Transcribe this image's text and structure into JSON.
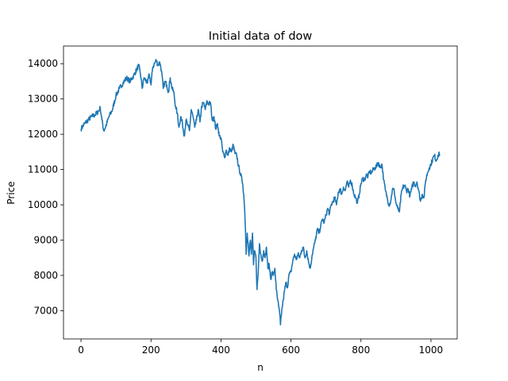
{
  "chart_data": {
    "type": "line",
    "title": "Initial data of dow",
    "xlabel": "n",
    "ylabel": "Price",
    "xlim": [
      -50,
      1075
    ],
    "ylim": [
      6200,
      14500
    ],
    "xticks": [
      0,
      200,
      400,
      600,
      800,
      1000
    ],
    "yticks": [
      7000,
      8000,
      9000,
      10000,
      11000,
      12000,
      13000,
      14000
    ],
    "grid": false,
    "series": [
      {
        "name": "dow",
        "color": "#1f77b4",
        "anchors": [
          [
            0,
            12150
          ],
          [
            10,
            12300
          ],
          [
            20,
            12400
          ],
          [
            30,
            12500
          ],
          [
            40,
            12550
          ],
          [
            50,
            12650
          ],
          [
            55,
            12750
          ],
          [
            60,
            12400
          ],
          [
            65,
            12100
          ],
          [
            70,
            12200
          ],
          [
            80,
            12500
          ],
          [
            90,
            12700
          ],
          [
            100,
            13100
          ],
          [
            110,
            13300
          ],
          [
            120,
            13450
          ],
          [
            130,
            13600
          ],
          [
            140,
            13500
          ],
          [
            150,
            13650
          ],
          [
            160,
            13850
          ],
          [
            165,
            13950
          ],
          [
            170,
            13700
          ],
          [
            175,
            13300
          ],
          [
            180,
            13600
          ],
          [
            190,
            13450
          ],
          [
            195,
            13700
          ],
          [
            200,
            13400
          ],
          [
            205,
            13900
          ],
          [
            210,
            14000
          ],
          [
            215,
            14100
          ],
          [
            220,
            13950
          ],
          [
            225,
            14050
          ],
          [
            230,
            13800
          ],
          [
            235,
            13300
          ],
          [
            240,
            13500
          ],
          [
            245,
            13400
          ],
          [
            250,
            13200
          ],
          [
            255,
            13600
          ],
          [
            260,
            13300
          ],
          [
            265,
            13200
          ],
          [
            270,
            12800
          ],
          [
            275,
            12600
          ],
          [
            280,
            12200
          ],
          [
            285,
            12500
          ],
          [
            290,
            12300
          ],
          [
            295,
            11950
          ],
          [
            300,
            12400
          ],
          [
            305,
            12250
          ],
          [
            310,
            12100
          ],
          [
            315,
            12700
          ],
          [
            320,
            12500
          ],
          [
            325,
            12200
          ],
          [
            330,
            12400
          ],
          [
            335,
            12700
          ],
          [
            340,
            12350
          ],
          [
            345,
            12800
          ],
          [
            350,
            12900
          ],
          [
            355,
            12700
          ],
          [
            360,
            12950
          ],
          [
            365,
            12850
          ],
          [
            370,
            12900
          ],
          [
            375,
            12400
          ],
          [
            380,
            12500
          ],
          [
            385,
            12150
          ],
          [
            390,
            12300
          ],
          [
            395,
            11950
          ],
          [
            400,
            11900
          ],
          [
            405,
            11500
          ],
          [
            410,
            11350
          ],
          [
            415,
            11550
          ],
          [
            420,
            11400
          ],
          [
            425,
            11600
          ],
          [
            430,
            11500
          ],
          [
            435,
            11700
          ],
          [
            440,
            11450
          ],
          [
            445,
            11400
          ],
          [
            450,
            11100
          ],
          [
            455,
            10900
          ],
          [
            460,
            10700
          ],
          [
            462,
            10600
          ],
          [
            465,
            10300
          ],
          [
            468,
            9800
          ],
          [
            470,
            9300
          ],
          [
            472,
            8600
          ],
          [
            475,
            9200
          ],
          [
            478,
            8900
          ],
          [
            480,
            8550
          ],
          [
            484,
            9000
          ],
          [
            487,
            8600
          ],
          [
            490,
            9200
          ],
          [
            493,
            8300
          ],
          [
            496,
            8700
          ],
          [
            500,
            8500
          ],
          [
            503,
            7600
          ],
          [
            506,
            8000
          ],
          [
            510,
            8900
          ],
          [
            514,
            8600
          ],
          [
            518,
            8400
          ],
          [
            522,
            8700
          ],
          [
            526,
            8500
          ],
          [
            530,
            8800
          ],
          [
            534,
            8200
          ],
          [
            538,
            8300
          ],
          [
            542,
            7900
          ],
          [
            546,
            8100
          ],
          [
            550,
            8000
          ],
          [
            554,
            8200
          ],
          [
            558,
            7600
          ],
          [
            562,
            7300
          ],
          [
            565,
            7100
          ],
          [
            568,
            6900
          ],
          [
            570,
            6600
          ],
          [
            572,
            6850
          ],
          [
            575,
            7100
          ],
          [
            578,
            7300
          ],
          [
            582,
            7600
          ],
          [
            586,
            7800
          ],
          [
            590,
            7650
          ],
          [
            594,
            8000
          ],
          [
            600,
            8100
          ],
          [
            605,
            8400
          ],
          [
            610,
            8600
          ],
          [
            615,
            8450
          ],
          [
            620,
            8600
          ],
          [
            625,
            8500
          ],
          [
            630,
            8700
          ],
          [
            635,
            8800
          ],
          [
            640,
            8500
          ],
          [
            645,
            8700
          ],
          [
            650,
            8400
          ],
          [
            655,
            8200
          ],
          [
            660,
            8550
          ],
          [
            665,
            8800
          ],
          [
            670,
            9000
          ],
          [
            675,
            9300
          ],
          [
            680,
            9200
          ],
          [
            685,
            9400
          ],
          [
            690,
            9600
          ],
          [
            695,
            9500
          ],
          [
            700,
            9700
          ],
          [
            705,
            9900
          ],
          [
            710,
            9750
          ],
          [
            715,
            10000
          ],
          [
            720,
            10100
          ],
          [
            725,
            10200
          ],
          [
            730,
            10000
          ],
          [
            735,
            10350
          ],
          [
            740,
            10450
          ],
          [
            745,
            10300
          ],
          [
            750,
            10500
          ],
          [
            755,
            10400
          ],
          [
            760,
            10650
          ],
          [
            765,
            10500
          ],
          [
            770,
            10700
          ],
          [
            775,
            10550
          ],
          [
            780,
            10300
          ],
          [
            785,
            10200
          ],
          [
            790,
            10050
          ],
          [
            795,
            10300
          ],
          [
            800,
            10600
          ],
          [
            805,
            10750
          ],
          [
            810,
            10700
          ],
          [
            815,
            10850
          ],
          [
            820,
            10800
          ],
          [
            825,
            10950
          ],
          [
            830,
            10900
          ],
          [
            835,
            11000
          ],
          [
            840,
            11050
          ],
          [
            845,
            11100
          ],
          [
            850,
            11200
          ],
          [
            855,
            11050
          ],
          [
            860,
            11150
          ],
          [
            865,
            10700
          ],
          [
            870,
            10400
          ],
          [
            875,
            10200
          ],
          [
            880,
            10000
          ],
          [
            885,
            10100
          ],
          [
            890,
            10450
          ],
          [
            895,
            10400
          ],
          [
            900,
            10050
          ],
          [
            905,
            9900
          ],
          [
            910,
            9800
          ],
          [
            915,
            10300
          ],
          [
            920,
            10500
          ],
          [
            925,
            10550
          ],
          [
            930,
            10400
          ],
          [
            935,
            10450
          ],
          [
            940,
            10250
          ],
          [
            945,
            10450
          ],
          [
            950,
            10650
          ],
          [
            955,
            10550
          ],
          [
            960,
            10650
          ],
          [
            965,
            10400
          ],
          [
            970,
            10100
          ],
          [
            975,
            10300
          ],
          [
            980,
            10200
          ],
          [
            985,
            10700
          ],
          [
            990,
            10900
          ],
          [
            995,
            11050
          ],
          [
            1000,
            11150
          ],
          [
            1005,
            11300
          ],
          [
            1010,
            11400
          ],
          [
            1015,
            11250
          ],
          [
            1020,
            11400
          ],
          [
            1025,
            11450
          ]
        ]
      }
    ]
  }
}
